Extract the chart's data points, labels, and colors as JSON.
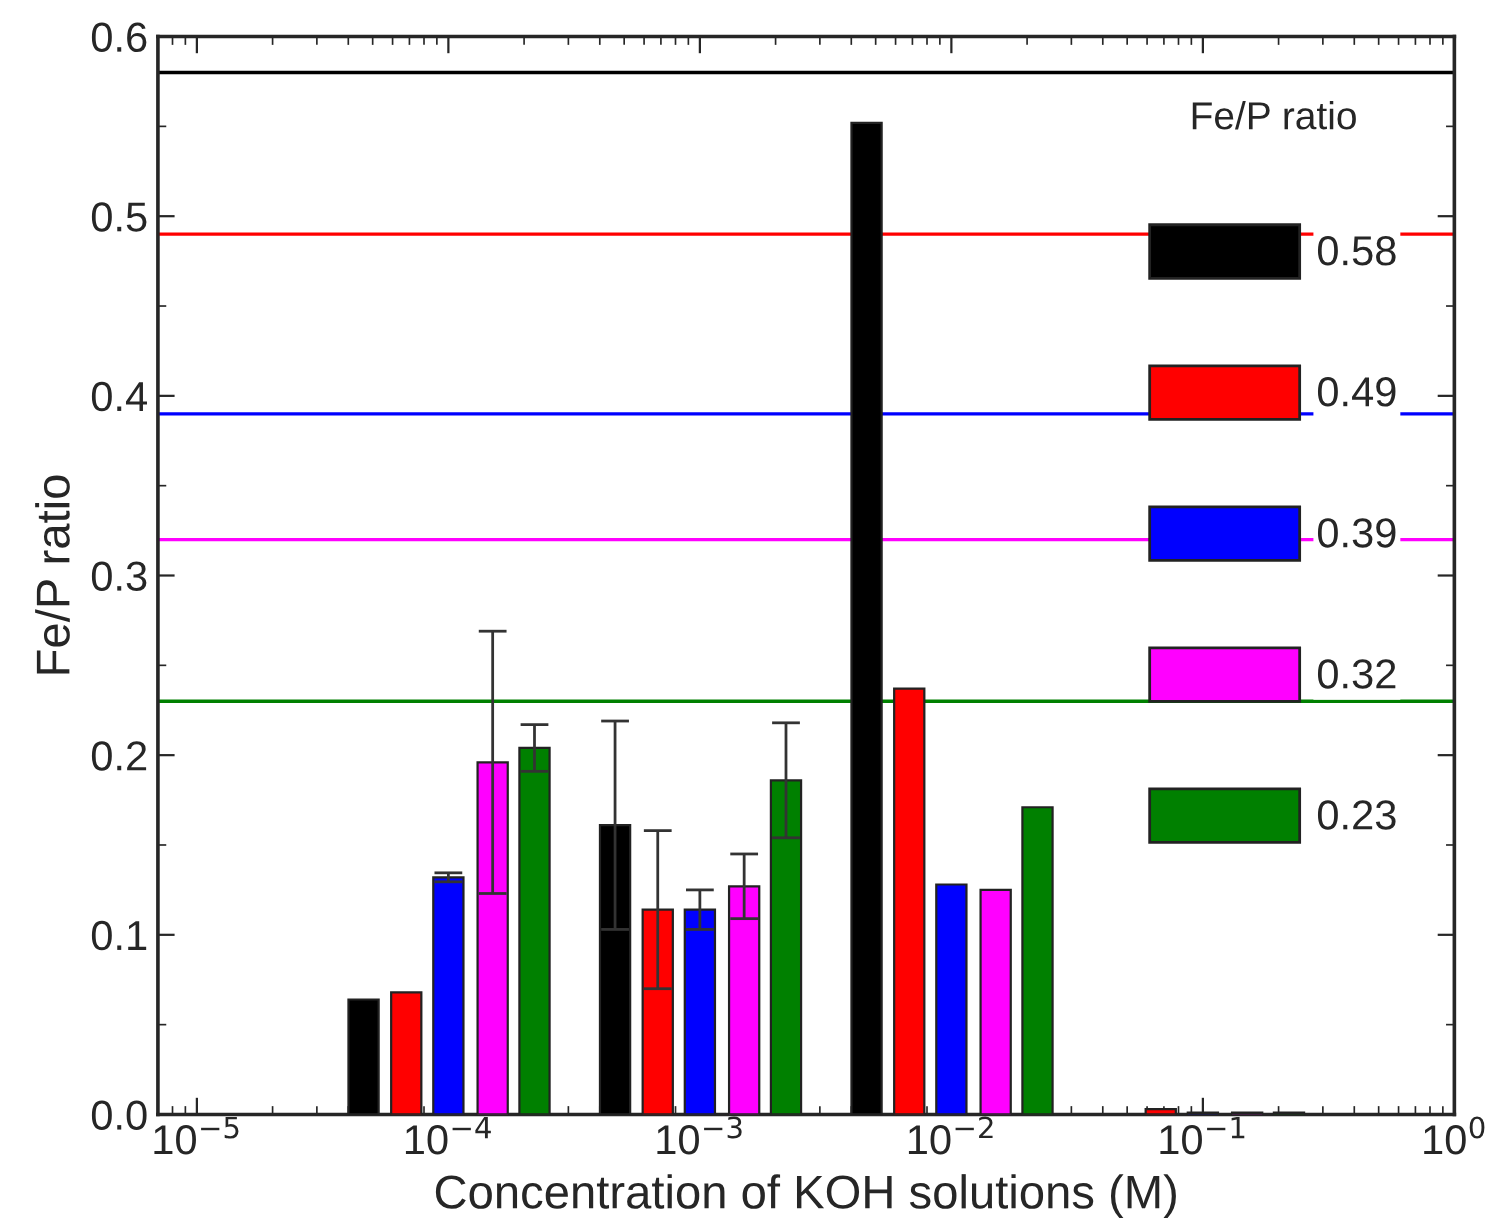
{
  "chart_data": {
    "type": "bar",
    "xlabel": "Concentration of KOH solutions (M)",
    "ylabel": "Fe/P ratio",
    "legend_title": "Fe/P ratio",
    "log": "x",
    "xlim": [
      7e-06,
      1
    ],
    "xticks": [
      {
        "value": 1e-05,
        "label": "10$^{−5}$"
      },
      {
        "value": 0.0001,
        "label": "10$^{−4}$"
      },
      {
        "value": 0.001,
        "label": "10$^{−3}$"
      },
      {
        "value": 0.01,
        "label": "10$^{−2}$"
      },
      {
        "value": 0.1,
        "label": "10$^{−1}$"
      },
      {
        "value": 1,
        "label": "10$^{0}$"
      }
    ],
    "ylim": [
      0,
      0.6
    ],
    "yticks": [
      {
        "value": 0,
        "label": "0.0"
      },
      0.1,
      0.2,
      0.3,
      0.4,
      0.5,
      0.6
    ],
    "grid": false,
    "legend": "top right",
    "series": [
      {
        "name": "0.58",
        "color": "#000000",
        "x": [
          4.6e-05,
          0.00046,
          0.0046
        ],
        "values": [
          0.064,
          0.161,
          0.552
        ],
        "errors": [
          null,
          0.058,
          null
        ]
      },
      {
        "name": "0.49",
        "color": "#ff0000",
        "x": [
          6.8e-05,
          0.00068,
          0.0068,
          0.068
        ],
        "values": [
          0.068,
          0.114,
          0.237,
          0.003
        ],
        "errors": [
          null,
          0.044,
          null,
          null
        ]
      },
      {
        "name": "0.39",
        "color": "#0000ff",
        "x": [
          0.0001,
          0.001,
          0.01,
          0.1
        ],
        "values": [
          0.132,
          0.114,
          0.128,
          0.001
        ],
        "errors": [
          0.0025,
          0.011,
          null,
          null
        ]
      },
      {
        "name": "0.32",
        "color": "#ff00ff",
        "x": [
          0.00015,
          0.0015,
          0.015,
          0.15
        ],
        "values": [
          0.196,
          0.127,
          0.125,
          0.001
        ],
        "errors": [
          0.073,
          0.018,
          null,
          null
        ]
      },
      {
        "name": "0.23",
        "color": "#008000",
        "x": [
          0.00022,
          0.0022,
          0.022,
          0.22
        ],
        "values": [
          0.204,
          0.186,
          0.171,
          0.001
        ],
        "errors": [
          0.013,
          0.032,
          null,
          null
        ]
      }
    ],
    "ref_lines": [
      {
        "axis": "y",
        "value": 0.58,
        "color": "#000000"
      },
      {
        "axis": "y",
        "value": 0.49,
        "color": "#ff0000"
      },
      {
        "axis": "y",
        "value": 0.39,
        "color": "#0000ff"
      },
      {
        "axis": "y",
        "value": 0.32,
        "color": "#ff00ff"
      },
      {
        "axis": "y",
        "value": 0.23,
        "color": "#008000"
      }
    ]
  }
}
